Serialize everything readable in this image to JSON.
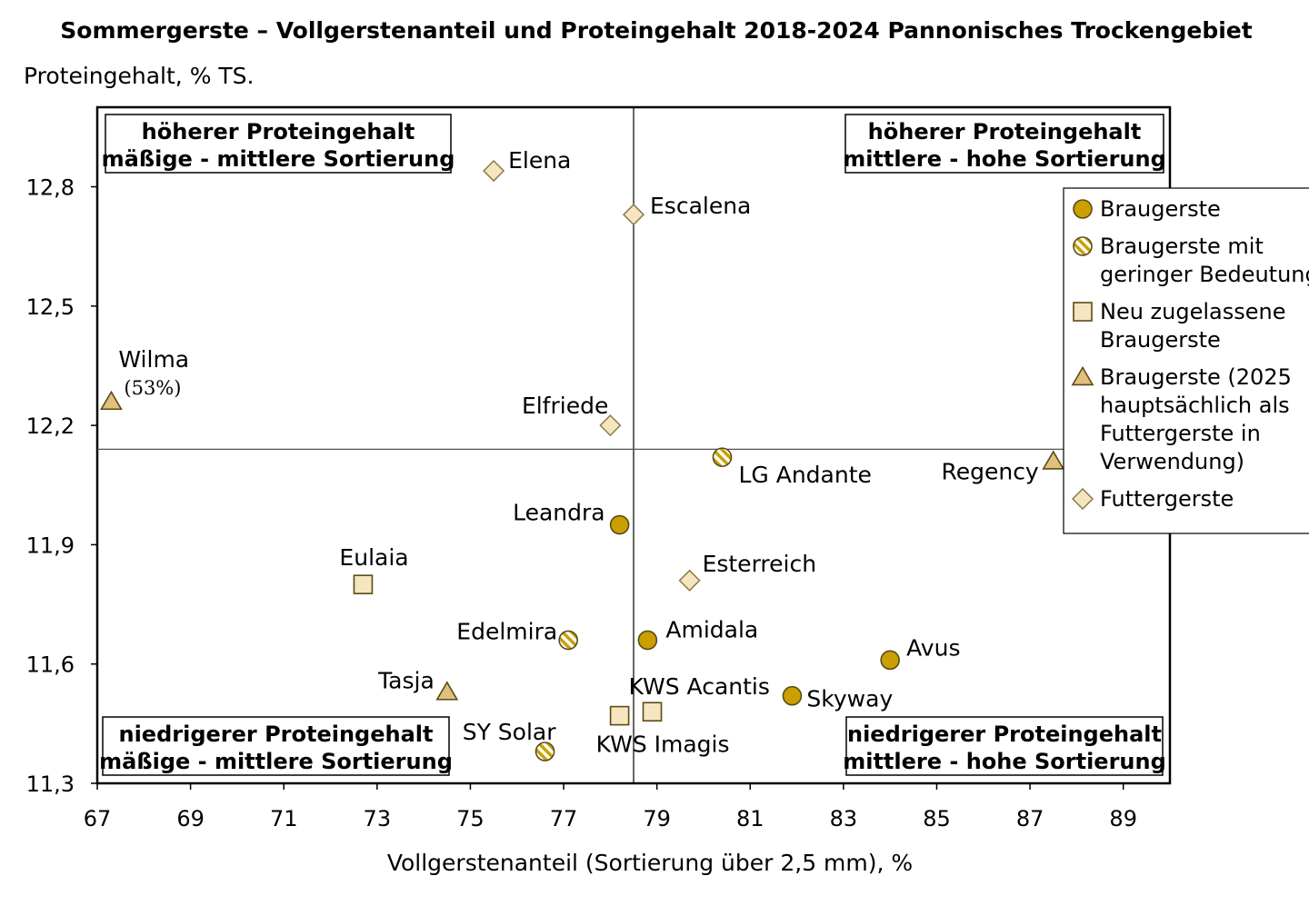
{
  "chart_data": {
    "type": "scatter",
    "title": "Sommergerste – Vollgerstenanteil und Proteingehalt 2018-2024 Pannonisches Trockengebiet",
    "xlabel": "Vollgerstenanteil (Sortierung über 2,5 mm), %",
    "ylabel": "Proteingehalt, % TS.",
    "xlim": [
      67,
      90
    ],
    "ylim": [
      11.3,
      13.0
    ],
    "x_ticks": [
      "67",
      "69",
      "71",
      "73",
      "75",
      "77",
      "79",
      "81",
      "83",
      "85",
      "87",
      "89"
    ],
    "y_ticks": [
      "11,3",
      "11,6",
      "11,9",
      "12,2",
      "12,5",
      "12,8"
    ],
    "reference_lines": {
      "x": 78.5,
      "y": 12.14
    },
    "grid": false,
    "legend_position": "right",
    "quadrant_labels": {
      "top_left": [
        "höherer Proteingehalt",
        "mäßige - mittlere Sortierung"
      ],
      "top_right": [
        "höherer Proteingehalt",
        "mittlere - hohe Sortierung"
      ],
      "bottom_left": [
        "niedrigerer Proteingehalt",
        "mäßige - mittlere Sortierung"
      ],
      "bottom_right": [
        "niedrigerer Proteingehalt",
        "mittlere - hohe Sortierung"
      ]
    },
    "series": [
      {
        "key": "braugerste",
        "name_lines": [
          "Braugerste"
        ],
        "marker": "circle",
        "color": "#c9a000",
        "points": [
          {
            "label": "Leandra",
            "x": 78.2,
            "y": 11.95
          },
          {
            "label": "Amidala",
            "x": 78.8,
            "y": 11.66
          },
          {
            "label": "Avus",
            "x": 84.0,
            "y": 11.61
          },
          {
            "label": "Skyway",
            "x": 81.9,
            "y": 11.52
          }
        ]
      },
      {
        "key": "braugerste_gering",
        "name_lines": [
          "Braugerste mit",
          "geringer Bedeutung"
        ],
        "marker": "hatched-circle",
        "color": "#c9a000",
        "points": [
          {
            "label": "LG Andante",
            "x": 80.4,
            "y": 12.12
          },
          {
            "label": "Edelmira",
            "x": 77.1,
            "y": 11.66
          },
          {
            "label": "SY Solar",
            "x": 76.6,
            "y": 11.38
          }
        ]
      },
      {
        "key": "neu",
        "name_lines": [
          "Neu zugelassene",
          "Braugerste"
        ],
        "marker": "square",
        "color": "#f5e6bf",
        "points": [
          {
            "label": "Eulaia",
            "x": 72.7,
            "y": 11.8
          },
          {
            "label": "KWS Acantis",
            "x": 78.9,
            "y": 11.48
          },
          {
            "label": "KWS Imagis",
            "x": 78.2,
            "y": 11.47
          }
        ]
      },
      {
        "key": "braugerste_2025",
        "name_lines": [
          "Braugerste (2025",
          "hauptsächlich als",
          "Futtergerste in",
          "Verwendung)"
        ],
        "marker": "triangle",
        "color": "#e0c07a",
        "points": [
          {
            "label": "Wilma",
            "sublabel": "(53%)",
            "x": 67.3,
            "y": 12.26
          },
          {
            "label": "Regency",
            "x": 87.5,
            "y": 12.11
          },
          {
            "label": "Tasja",
            "x": 74.5,
            "y": 11.53
          }
        ]
      },
      {
        "key": "futtergerste",
        "name_lines": [
          "Futtergerste"
        ],
        "marker": "diamond",
        "color": "#f5e6bf",
        "points": [
          {
            "label": "Elena",
            "x": 75.5,
            "y": 12.84
          },
          {
            "label": "Escalena",
            "x": 78.5,
            "y": 12.73
          },
          {
            "label": "Elfriede",
            "x": 78.0,
            "y": 12.2
          },
          {
            "label": "Esterreich",
            "x": 79.7,
            "y": 11.81
          }
        ]
      }
    ]
  }
}
